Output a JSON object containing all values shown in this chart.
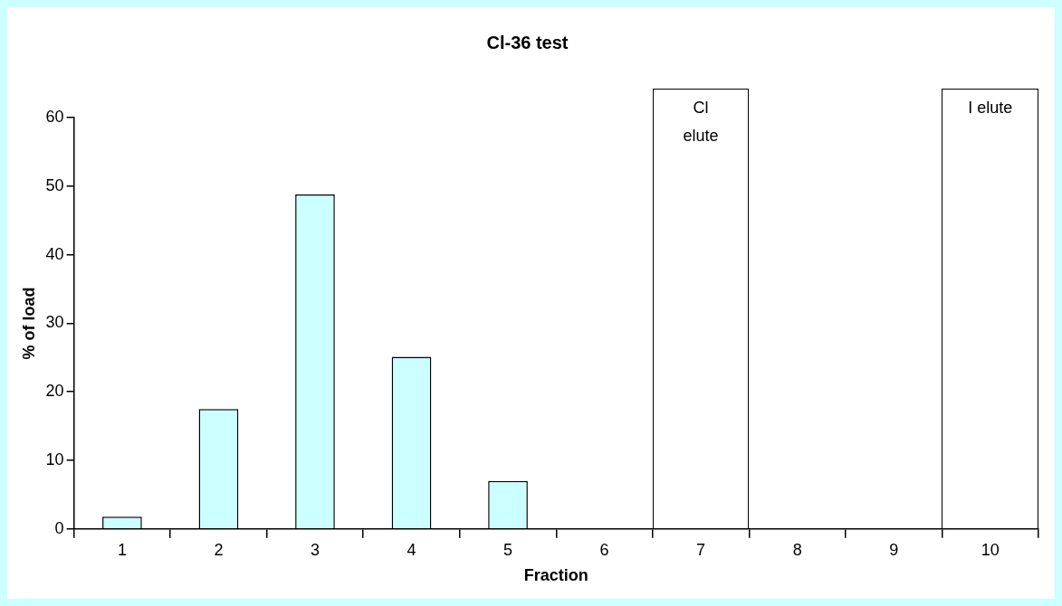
{
  "chart_data": {
    "type": "bar",
    "title": "Cl-36 test",
    "xlabel": "Fraction",
    "ylabel": "% of load",
    "categories": [
      "1",
      "2",
      "3",
      "4",
      "5",
      "6",
      "7",
      "8",
      "9",
      "10"
    ],
    "values": [
      1.8,
      17.5,
      48.8,
      25.1,
      7.0,
      0,
      0,
      0,
      0,
      0
    ],
    "color": "#ccffff",
    "ylim": [
      0,
      60
    ],
    "yticks": [
      0,
      10,
      20,
      30,
      40,
      50,
      60
    ],
    "grid": false,
    "legend": false,
    "bands": [
      {
        "axis": "x",
        "from": "7",
        "to": "7",
        "label": "Cl elute",
        "color": "#ffffff"
      },
      {
        "axis": "x",
        "from": "10",
        "to": "10",
        "label": "I elute",
        "color": "#ffffff"
      }
    ]
  }
}
